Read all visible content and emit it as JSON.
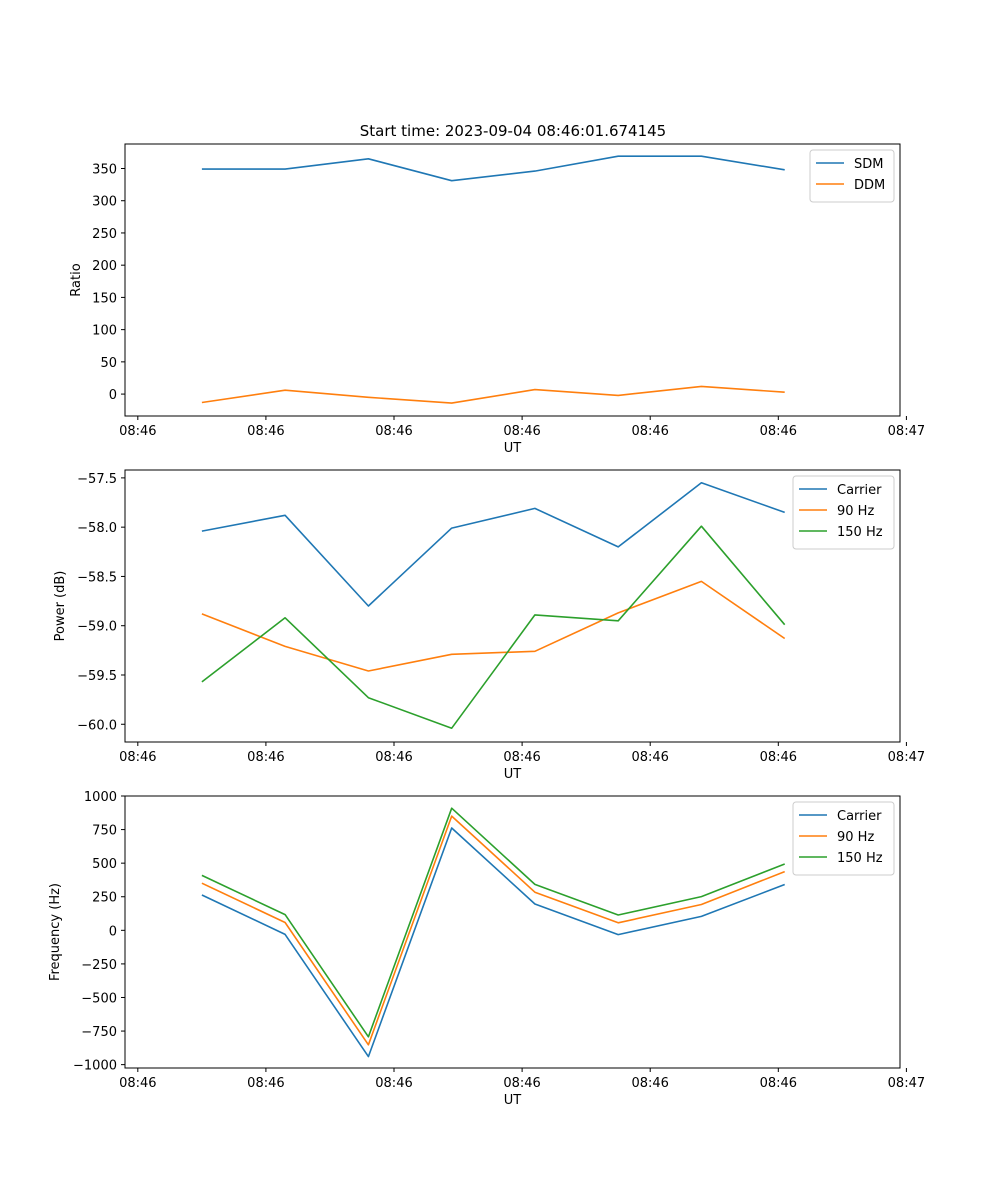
{
  "figure_title": "Start time: 2023-09-04 08:46:01.674145",
  "chart_data": [
    {
      "type": "line",
      "title": "Start time: 2023-09-04 08:46:01.674145",
      "xlabel": "UT",
      "ylabel": "Ratio",
      "x_ticks": [
        "08:46",
        "08:46",
        "08:46",
        "08:46",
        "08:46",
        "08:46",
        "08:47"
      ],
      "y_ticks": [
        "0",
        "50",
        "100",
        "150",
        "200",
        "250",
        "300",
        "350"
      ],
      "ylim": [
        -34,
        388
      ],
      "x": [
        0.5,
        1.15,
        1.8,
        2.45,
        3.1,
        3.75,
        4.4,
        5.05
      ],
      "legend_position": "upper right",
      "series": [
        {
          "name": "SDM",
          "color": "#1f77b4",
          "values": [
            349,
            349,
            365,
            331,
            346,
            369,
            369,
            348
          ]
        },
        {
          "name": "DDM",
          "color": "#ff7f0e",
          "values": [
            -13,
            6,
            -5,
            -14,
            7,
            -2,
            12,
            3
          ]
        }
      ]
    },
    {
      "type": "line",
      "xlabel": "UT",
      "ylabel": "Power (dB)",
      "x_ticks": [
        "08:46",
        "08:46",
        "08:46",
        "08:46",
        "08:46",
        "08:46",
        "08:47"
      ],
      "y_ticks": [
        "−60.0",
        "−59.5",
        "−59.0",
        "−58.5",
        "−58.0",
        "−57.5"
      ],
      "ylim": [
        -60.18,
        -57.42
      ],
      "x": [
        0.5,
        1.15,
        1.8,
        2.45,
        3.1,
        3.75,
        4.4,
        5.05
      ],
      "legend_position": "upper right",
      "series": [
        {
          "name": "Carrier",
          "color": "#1f77b4",
          "values": [
            -58.04,
            -57.88,
            -58.8,
            -58.01,
            -57.81,
            -58.2,
            -57.55,
            -57.85
          ]
        },
        {
          "name": "90 Hz",
          "color": "#ff7f0e",
          "values": [
            -58.88,
            -59.21,
            -59.46,
            -59.29,
            -59.26,
            -58.87,
            -58.55,
            -59.13
          ]
        },
        {
          "name": "150 Hz",
          "color": "#2ca02c",
          "values": [
            -59.57,
            -58.92,
            -59.73,
            -60.04,
            -58.89,
            -58.95,
            -57.99,
            -58.99
          ]
        }
      ]
    },
    {
      "type": "line",
      "xlabel": "UT",
      "ylabel": "Frequency (Hz)",
      "x_ticks": [
        "08:46",
        "08:46",
        "08:46",
        "08:46",
        "08:46",
        "08:46",
        "08:47"
      ],
      "y_ticks": [
        "−1000",
        "−750",
        "−500",
        "−250",
        "0",
        "250",
        "500",
        "750",
        "1000"
      ],
      "ylim": [
        -1025,
        1000
      ],
      "x": [
        0.5,
        1.15,
        1.8,
        2.45,
        3.1,
        3.75,
        4.4,
        5.05
      ],
      "legend_position": "upper right",
      "series": [
        {
          "name": "Carrier",
          "color": "#1f77b4",
          "values": [
            263,
            -30,
            -940,
            762,
            196,
            -32,
            104,
            341
          ]
        },
        {
          "name": "90 Hz",
          "color": "#ff7f0e",
          "values": [
            351,
            58,
            -852,
            850,
            284,
            56,
            192,
            437
          ]
        },
        {
          "name": "150 Hz",
          "color": "#2ca02c",
          "values": [
            409,
            117,
            -793,
            909,
            342,
            114,
            251,
            494
          ]
        }
      ]
    }
  ]
}
